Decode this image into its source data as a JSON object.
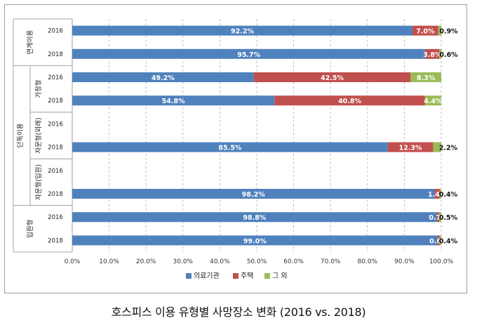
{
  "caption": "호스피스 이용 유형별 사망장소 변화 (2016 vs. 2018)",
  "chart_data": {
    "type": "bar",
    "orientation": "horizontal",
    "stacked": true,
    "x_ticks": [
      "0.0%",
      "10.0%",
      "20.0%",
      "30.0%",
      "40.0%",
      "50.0%",
      "60.0%",
      "70.0%",
      "80.0%",
      "90.0%",
      "100.0%"
    ],
    "xlim": [
      0,
      100
    ],
    "grid": "vertical dashed",
    "legend_position": "bottom",
    "series": [
      {
        "name": "의료기관",
        "color": "#4f81bd"
      },
      {
        "name": "주택",
        "color": "#c0504d"
      },
      {
        "name": "그 외",
        "color": "#9bbb59"
      }
    ],
    "groups": [
      {
        "label": "연계이용",
        "outer": ""
      },
      {
        "label": "가정형",
        "outer": "단독이용"
      },
      {
        "label": "자문형(외래)",
        "outer": "단독이용"
      },
      {
        "label": "자문형(입원)",
        "outer": "단독이용"
      },
      {
        "label": "입원형",
        "outer": ""
      }
    ],
    "rows": [
      {
        "year": "2016",
        "group": 0,
        "values": [
          92.2,
          7.0,
          0.9
        ],
        "labels": [
          "92.2%",
          "7.0%",
          "0.9%"
        ]
      },
      {
        "year": "2018",
        "group": 0,
        "values": [
          95.7,
          3.8,
          0.6
        ],
        "labels": [
          "95.7%",
          "3.8%",
          "0.6%"
        ]
      },
      {
        "year": "2016",
        "group": 1,
        "values": [
          49.2,
          42.5,
          8.3
        ],
        "labels": [
          "49.2%",
          "42.5%",
          "8.3%"
        ]
      },
      {
        "year": "2018",
        "group": 1,
        "values": [
          54.8,
          40.8,
          4.4
        ],
        "labels": [
          "54.8%",
          "40.8%",
          "4.4%"
        ]
      },
      {
        "year": "2016",
        "group": 2,
        "values": null,
        "labels": null
      },
      {
        "year": "2018",
        "group": 2,
        "values": [
          85.5,
          12.3,
          2.2
        ],
        "labels": [
          "85.5%",
          "12.3%",
          "2.2%"
        ]
      },
      {
        "year": "2016",
        "group": 3,
        "values": null,
        "labels": null
      },
      {
        "year": "2018",
        "group": 3,
        "values": [
          98.2,
          1.4,
          0.4
        ],
        "labels": [
          "98.2%",
          "1.4%",
          "0.4%"
        ]
      },
      {
        "year": "2016",
        "group": 4,
        "values": [
          98.8,
          0.7,
          0.5
        ],
        "labels": [
          "98.8%",
          "0.7%",
          "0.5%"
        ]
      },
      {
        "year": "2018",
        "group": 4,
        "values": [
          99.0,
          0.6,
          0.4
        ],
        "labels": [
          "99.0%",
          "0.6%",
          "0.4%"
        ]
      }
    ]
  }
}
